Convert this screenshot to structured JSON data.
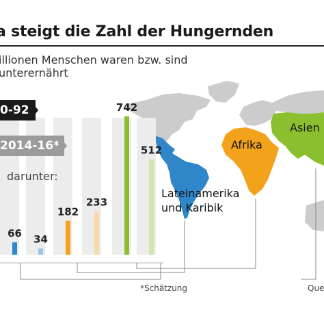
{
  "header": {
    "title": "a steigt die Zahl der Hungernden",
    "subtitle_line1": "illionen Menschen waren bzw. sind",
    "subtitle_line2": "unterernährt"
  },
  "legend": {
    "period1_label": "0-92",
    "period2_label": "2014-16*",
    "subset_label": "darunter:"
  },
  "regions": {
    "latin": "Lateinamerika\nund Karibik",
    "africa": "Afrika",
    "asia": "Asien"
  },
  "footer": {
    "estimate_note": "*Schätzung",
    "source_prefix": "Que"
  },
  "colors": {
    "latin_america": "#2f86c8",
    "africa": "#f3a21c",
    "asia": "#8cbf2f",
    "map_grey": "#cccccc",
    "column_bg": "#ececec"
  },
  "chart_data": {
    "type": "bar",
    "categories": [
      "Lateinamerika und Karibik",
      "Afrika",
      "Asien"
    ],
    "series": [
      {
        "name": "0-92",
        "values": [
          66,
          182,
          742
        ]
      },
      {
        "name": "2014-16*",
        "values": [
          34,
          233,
          512
        ]
      }
    ],
    "value_labels": [
      "66",
      "34",
      "182",
      "233",
      "742",
      "512"
    ],
    "title": "a steigt die Zahl der Hungernden",
    "ylim": [
      0,
      800
    ]
  }
}
